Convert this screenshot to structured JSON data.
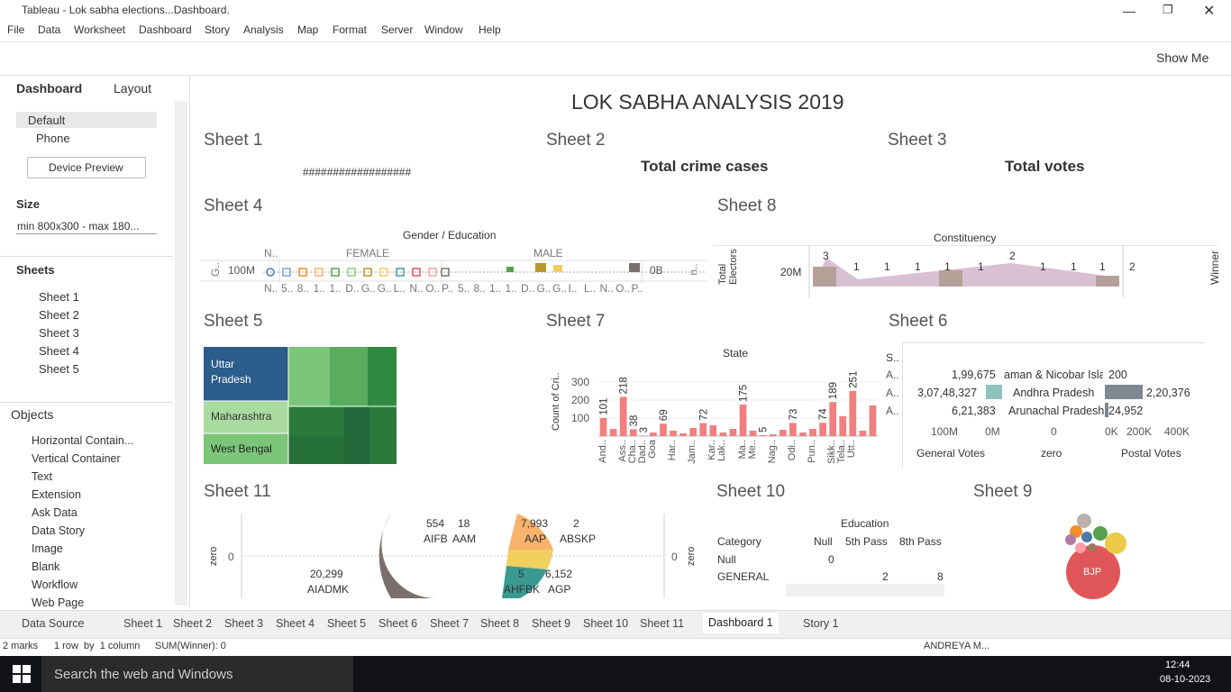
{
  "window": {
    "title": "Tableau - Lok sabha elections...Dashboard."
  },
  "menu": [
    "File",
    "Data",
    "Worksheet",
    "Dashboard",
    "Story",
    "Analysis",
    "Map",
    "Format",
    "Server",
    "Window",
    "Help"
  ],
  "toolbar": {
    "show_me": "Show Me"
  },
  "side_panel": {
    "tabs": [
      "Dashboard",
      "Layout"
    ],
    "devices": [
      "Default",
      "Phone"
    ],
    "device_preview": "Device Preview",
    "size_heading": "Size",
    "size_value": "min 800x300 - max 180...",
    "sheets_heading": "Sheets",
    "sheets": [
      "Sheet 1",
      "Sheet 2",
      "Sheet 3",
      "Sheet 4",
      "Sheet 5"
    ],
    "objects_heading": "Objects",
    "objects": [
      "Horizontal Contain...",
      "Vertical Container",
      "Text",
      "Extension",
      "Ask Data",
      "Data Story",
      "Image",
      "Blank",
      "Workflow",
      "Web Page"
    ]
  },
  "dashboard": {
    "title": "LOK SABHA ANALYSIS 2019",
    "sheet1": {
      "title": "Sheet 1",
      "text": "##################"
    },
    "sheet2": {
      "title": "Sheet 2",
      "text": "Total crime cases"
    },
    "sheet3": {
      "title": "Sheet 3",
      "text": "Total votes"
    },
    "sheet4": {
      "title": "Sheet 4",
      "header": "Gender / Education",
      "null_col": "N..",
      "groups": [
        "FEMALE",
        "MALE"
      ],
      "row_label": "G..",
      "left_tick": "100M",
      "right_tick": "0B",
      "right_col": "n..",
      "null_label": "N..",
      "female_labels": [
        "5..",
        "8..",
        "1..",
        "1..",
        "D..",
        "G..",
        "G..",
        "L..",
        "N..",
        "O..",
        "P.."
      ],
      "male_labels": [
        "5..",
        "8..",
        "1..",
        "1..",
        "D..",
        "G..",
        "G..",
        "I..",
        "L..",
        "N..",
        "O..",
        "P.."
      ]
    },
    "sheet8": {
      "title": "Sheet 8",
      "header": "Constituency",
      "y_title": "Total Electors",
      "tick": "20M",
      "labels": [
        "3",
        "1",
        "1",
        "1",
        "1",
        "1",
        "2",
        "1",
        "1",
        "1"
      ],
      "right_value": "2",
      "right_title": "Winner"
    },
    "sheet5": {
      "title": "Sheet 5",
      "labels": [
        "Uttar Pradesh",
        "Maharashtra",
        "West Bengal"
      ]
    },
    "sheet7": {
      "title": "Sheet 7",
      "header": "State",
      "y_title": "Count of Cri..",
      "color": "#f08080",
      "categories": [
        "And..",
        null,
        "Ass..",
        "Cha..",
        "Dad..",
        "Goa",
        null,
        "Har..",
        null,
        "Jam..",
        null,
        "Kar..",
        "Lak..",
        null,
        "Ma..",
        "Me..",
        null,
        "Nag..",
        null,
        "Odi..",
        null,
        "Pun..",
        null,
        "Sikk..",
        "Tela..",
        "Utt..",
        null,
        null
      ],
      "values": [
        101,
        40,
        218,
        38,
        3,
        20,
        69,
        30,
        15,
        45,
        72,
        60,
        20,
        40,
        175,
        30,
        5,
        10,
        35,
        73,
        20,
        40,
        74,
        189,
        110,
        251,
        30,
        170
      ],
      "value_labels": [
        "101",
        null,
        "218",
        "38",
        "3",
        null,
        "69",
        null,
        null,
        null,
        "72",
        null,
        null,
        null,
        "175",
        null,
        "5",
        null,
        null,
        "73",
        null,
        null,
        "74",
        "189",
        null,
        "251",
        null,
        null
      ],
      "ylim": [
        0,
        360
      ],
      "yticks": [
        100,
        200,
        300
      ]
    },
    "sheet6": {
      "title": "Sheet 6",
      "row_header": "S..",
      "rows": [
        "A..",
        "A..",
        "A.."
      ],
      "general_votes": [
        "1,99,675",
        "3,07,48,327",
        "6,21,383"
      ],
      "states": [
        "aman & Nicobar Isla",
        "Andhra Pradesh",
        "Arunachal Pradesh"
      ],
      "postal_votes": [
        "200",
        "2,20,376",
        "24,952"
      ],
      "general_ticks": [
        "100M",
        "0M"
      ],
      "zero_tick": "0",
      "postal_ticks": [
        "0K",
        "200K",
        "400K"
      ],
      "columns": [
        "General Votes",
        "zero",
        "Postal Votes"
      ]
    },
    "sheet11": {
      "title": "Sheet 11",
      "axis_title_left": "zero",
      "tick_left": "0",
      "axis_title_right": "zero",
      "tick_right": "0",
      "labels": [
        {
          "value": "554",
          "party": "AIFB"
        },
        {
          "value": "18",
          "party": "AAM"
        },
        {
          "value": "7,993",
          "party": "AAP"
        },
        {
          "value": "2",
          "party": "ABSKP"
        },
        {
          "value": "20,299",
          "party": "AIADMK"
        },
        {
          "value": "5",
          "party": "AHFBK"
        },
        {
          "value": "6,152",
          "party": "AGP"
        }
      ]
    },
    "sheet10": {
      "title": "Sheet 10",
      "header": "Education",
      "columns": [
        "Category",
        "Null",
        "5th Pass",
        "8th Pass"
      ],
      "rows": [
        [
          "Null",
          "0",
          "",
          ""
        ],
        [
          "GENERAL",
          "",
          "2",
          "8"
        ]
      ]
    },
    "sheet9": {
      "title": "Sheet 9",
      "label": "BJP"
    }
  },
  "tabs": [
    "Data Source",
    "Sheet 1",
    "Sheet 2",
    "Sheet 3",
    "Sheet 4",
    "Sheet 5",
    "Sheet 6",
    "Sheet 7",
    "Sheet 8",
    "Sheet 9",
    "Sheet 10",
    "Sheet 11",
    "Dashboard 1",
    "Story 1"
  ],
  "status": {
    "marks": "2 marks",
    "rows": "1 row  by  1 column",
    "sum": "SUM(Winner): 0",
    "user": "ANDREYA M..."
  },
  "taskbar": {
    "search": "Search the web and Windows",
    "time": "12:44",
    "date": "08-10-2023"
  }
}
